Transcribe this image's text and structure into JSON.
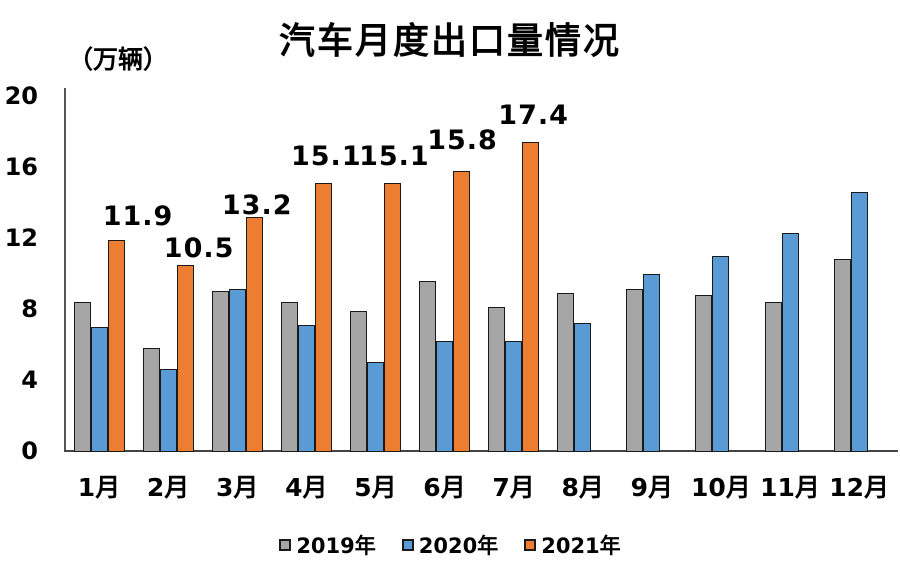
{
  "title": "汽车月度出口量情况",
  "unit_label": "（万辆）",
  "chart_data": {
    "type": "bar",
    "title": "汽车月度出口量情况",
    "ylabel": "（万辆）",
    "xlabel": "",
    "ylim": [
      0,
      20
    ],
    "yticks": [
      0,
      4,
      8,
      12,
      16,
      20
    ],
    "grid": false,
    "legend_position": "bottom",
    "categories": [
      "1月",
      "2月",
      "3月",
      "4月",
      "5月",
      "6月",
      "7月",
      "8月",
      "9月",
      "10月",
      "11月",
      "12月"
    ],
    "series": [
      {
        "name": "2019年",
        "color": "#A6A6A6",
        "values": [
          8.4,
          5.8,
          9.0,
          8.4,
          7.9,
          9.6,
          8.1,
          8.9,
          9.1,
          8.8,
          8.4,
          10.8
        ]
      },
      {
        "name": "2020年",
        "color": "#5B9BD5",
        "values": [
          7.0,
          4.6,
          9.1,
          7.1,
          5.0,
          6.2,
          6.2,
          7.2,
          10.0,
          11.0,
          12.3,
          14.6
        ]
      },
      {
        "name": "2021年",
        "color": "#ED7D31",
        "values": [
          11.9,
          10.5,
          13.2,
          15.1,
          15.1,
          15.8,
          17.4,
          null,
          null,
          null,
          null,
          null
        ],
        "data_labels": [
          "11.9",
          "10.5",
          "13.2",
          "15.1",
          "15.1",
          "15.8",
          "17.4"
        ]
      }
    ],
    "colors": {
      "bar_border": "#1a1a1a",
      "axis": "#4d4d4d",
      "text": "#000000",
      "background": "#ffffff"
    }
  }
}
